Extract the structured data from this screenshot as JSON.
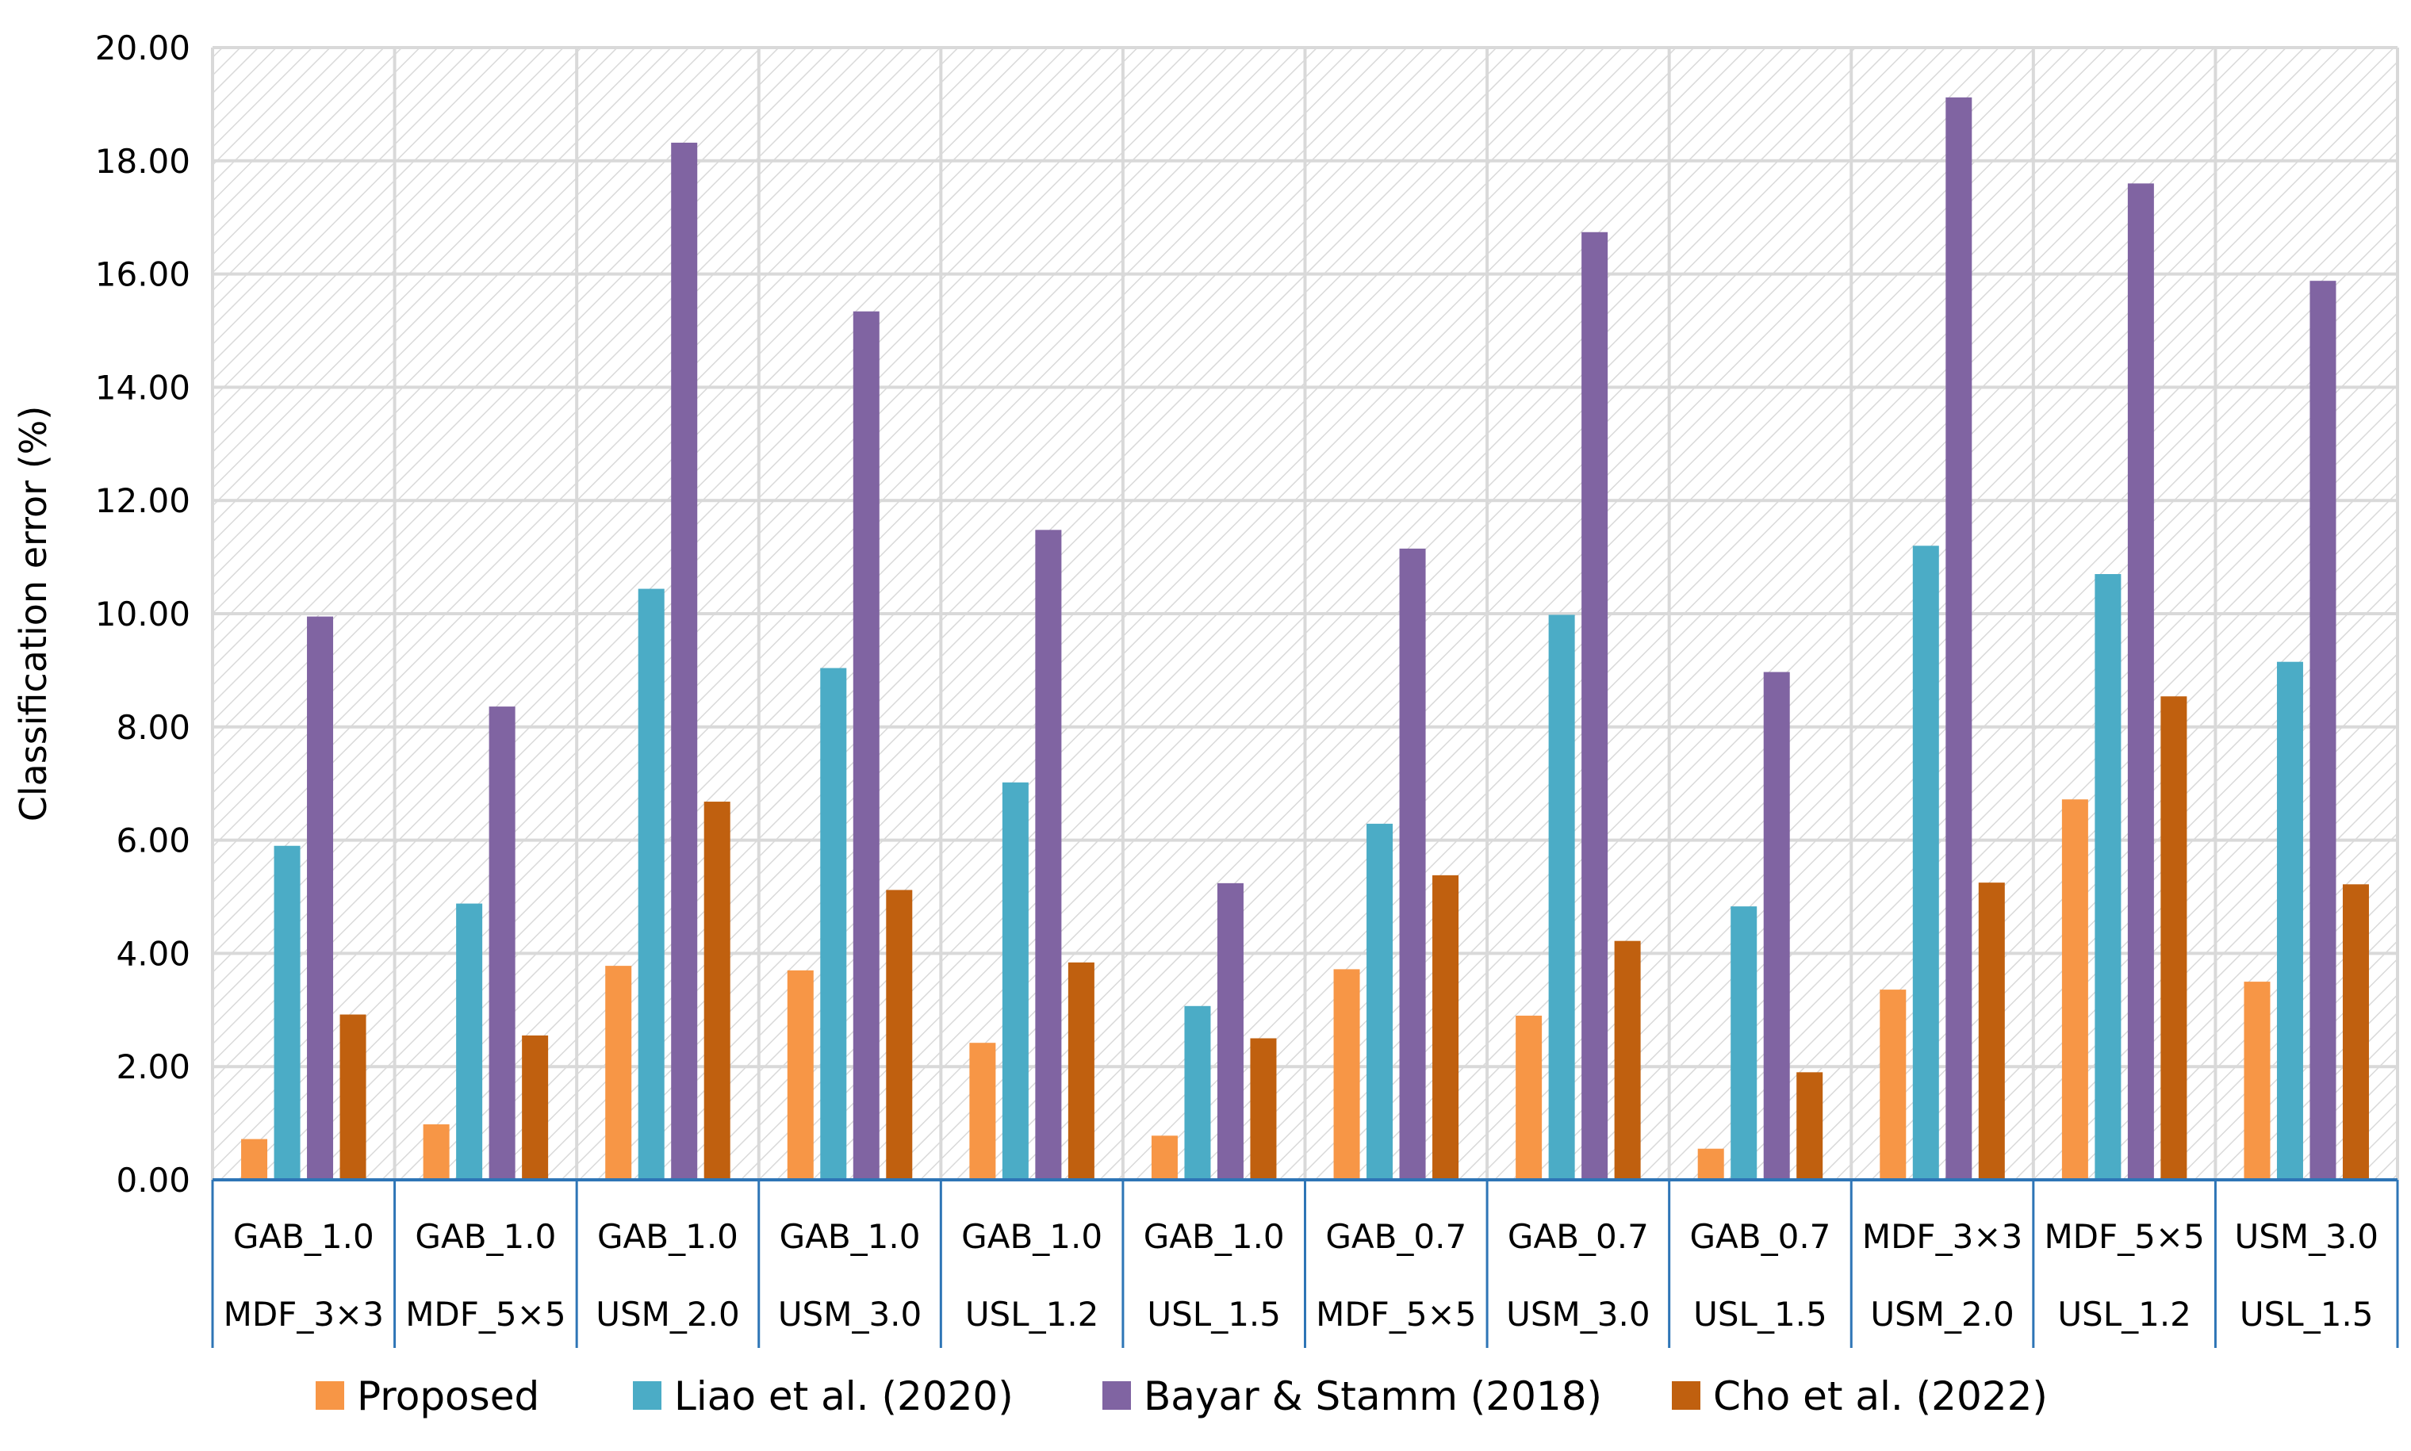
{
  "chart_data": {
    "type": "bar",
    "title": "",
    "xlabel": "",
    "ylabel": "Classification error (%)",
    "ylim": [
      0,
      20
    ],
    "ytick_step": 2,
    "ytick_labels": [
      "0.00",
      "2.00",
      "4.00",
      "6.00",
      "8.00",
      "10.00",
      "12.00",
      "14.00",
      "16.00",
      "18.00",
      "20.00"
    ],
    "grid": true,
    "legend_position": "bottom",
    "categories": [
      {
        "top": "GAB_1.0",
        "bottom": "MDF_3×3"
      },
      {
        "top": "GAB_1.0",
        "bottom": "MDF_5×5"
      },
      {
        "top": "GAB_1.0",
        "bottom": "USM_2.0"
      },
      {
        "top": "GAB_1.0",
        "bottom": "USM_3.0"
      },
      {
        "top": "GAB_1.0",
        "bottom": "USL_1.2"
      },
      {
        "top": "GAB_1.0",
        "bottom": "USL_1.5"
      },
      {
        "top": "GAB_0.7",
        "bottom": "MDF_5×5"
      },
      {
        "top": "GAB_0.7",
        "bottom": "USM_3.0"
      },
      {
        "top": "GAB_0.7",
        "bottom": "USL_1.5"
      },
      {
        "top": "MDF_3×3",
        "bottom": "USM_2.0"
      },
      {
        "top": "MDF_5×5",
        "bottom": "USL_1.2"
      },
      {
        "top": "USM_3.0",
        "bottom": "USL_1.5"
      }
    ],
    "series": [
      {
        "name": "Proposed",
        "color": "#F79646",
        "values": [
          0.72,
          0.98,
          3.78,
          3.7,
          2.42,
          0.78,
          3.72,
          2.9,
          0.55,
          3.36,
          6.72,
          3.5
        ]
      },
      {
        "name": "Liao et al. (2020)",
        "color": "#4BACC6",
        "values": [
          5.9,
          4.88,
          10.44,
          9.04,
          7.02,
          3.07,
          6.29,
          9.98,
          4.83,
          11.2,
          10.7,
          9.15
        ]
      },
      {
        "name": "Bayar & Stamm (2018)",
        "color": "#8064A2",
        "values": [
          9.95,
          8.36,
          18.32,
          15.34,
          11.48,
          5.24,
          11.15,
          16.74,
          8.97,
          19.12,
          17.6,
          15.88
        ]
      },
      {
        "name": "Cho et al. (2022)",
        "color": "#C0600F",
        "values": [
          2.92,
          2.55,
          6.68,
          5.12,
          3.84,
          2.5,
          5.38,
          4.22,
          1.9,
          5.25,
          8.54,
          5.22
        ]
      }
    ]
  }
}
